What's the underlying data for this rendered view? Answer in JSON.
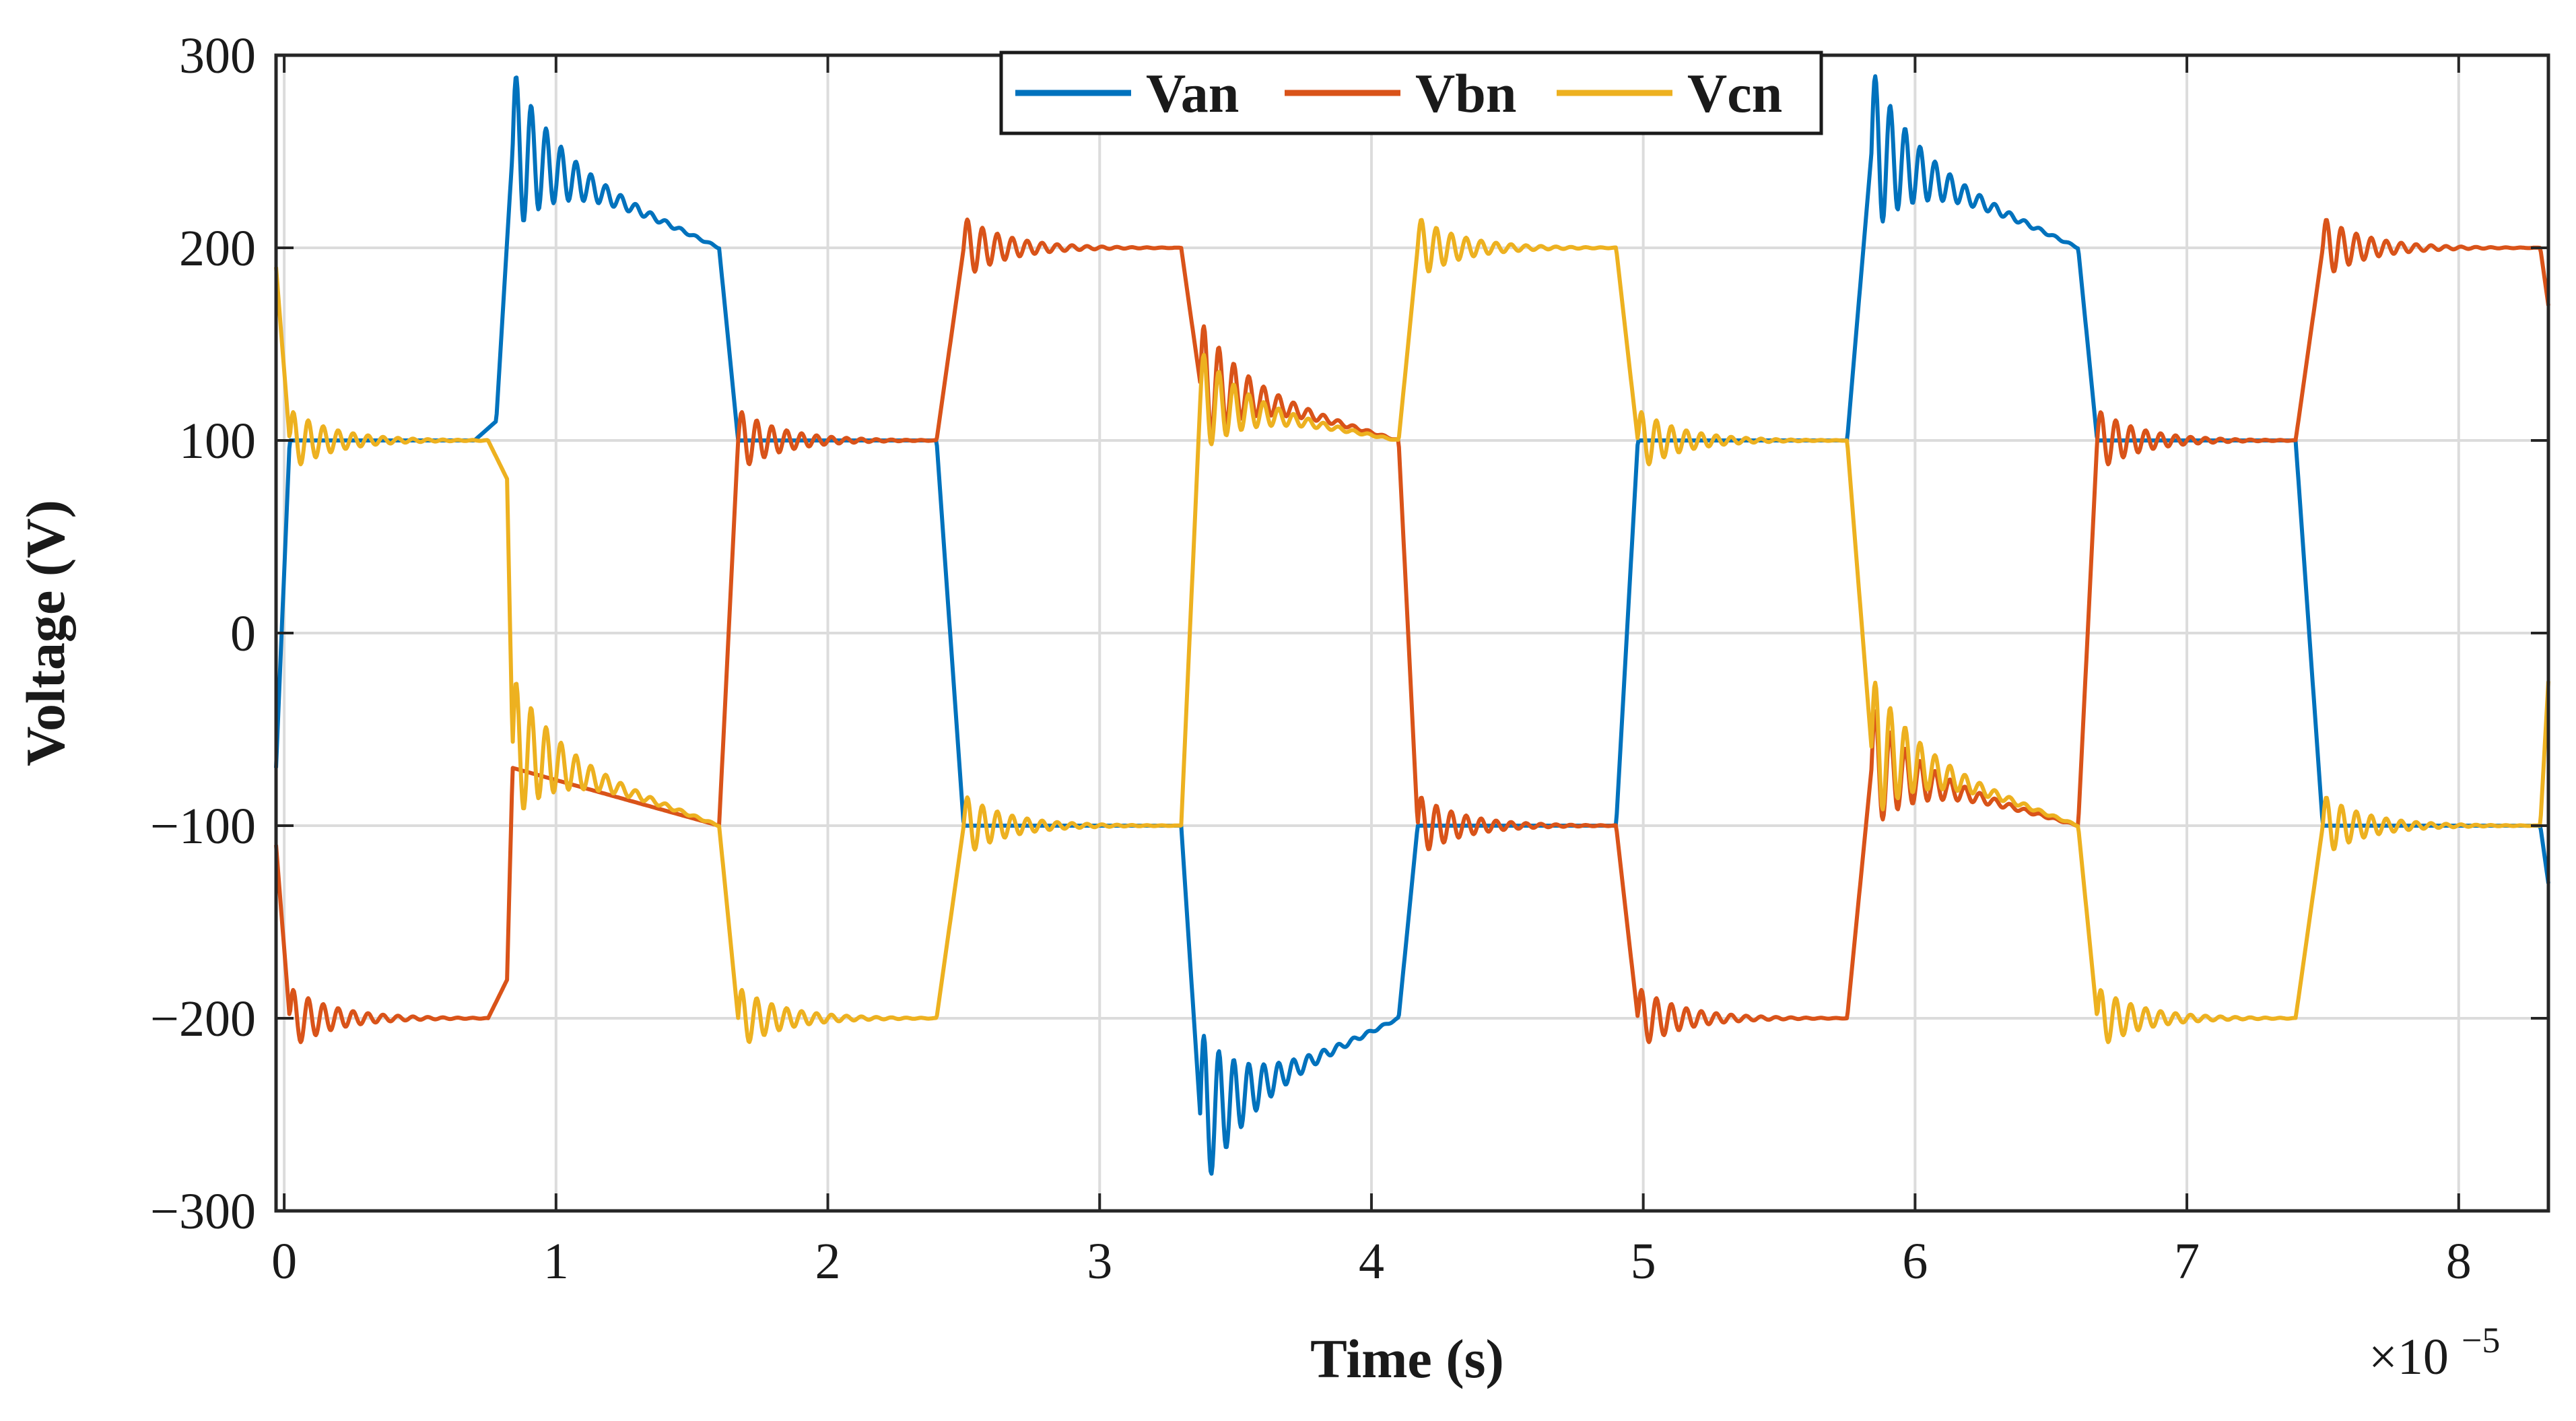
{
  "chart_data": {
    "type": "line",
    "title": "",
    "xlabel": "Time (s)",
    "ylabel": "Voltage (V)",
    "x_exponent_base": "×10",
    "x_exponent_power": "−5",
    "xlim": [
      -0.03,
      8.33
    ],
    "ylim": [
      -300,
      300
    ],
    "xticks": [
      0,
      1,
      2,
      3,
      4,
      5,
      6,
      7,
      8
    ],
    "xtick_labels": [
      "0",
      "1",
      "2",
      "3",
      "4",
      "5",
      "6",
      "7",
      "8"
    ],
    "yticks": [
      300,
      200,
      100,
      0,
      -100,
      -200,
      -300
    ],
    "ytick_labels": [
      "300",
      "200",
      "100",
      "0",
      "−100",
      "−200",
      "−300"
    ],
    "grid": true,
    "legend_position": "top-center",
    "series": [
      {
        "name": "Van",
        "color": "#0072BD",
        "points": [
          [
            -0.03,
            -70
          ],
          [
            0.02,
            100
          ],
          [
            0.7,
            100
          ],
          [
            0.78,
            110
          ],
          [
            0.84,
            250
          ],
          [
            1.6,
            200
          ],
          [
            1.67,
            100
          ],
          [
            2.4,
            100
          ],
          [
            2.5,
            -100
          ],
          [
            3.3,
            -100
          ],
          [
            3.37,
            -250
          ],
          [
            4.1,
            -200
          ],
          [
            4.17,
            -100
          ],
          [
            4.9,
            -100
          ],
          [
            4.98,
            100
          ],
          [
            5.75,
            100
          ],
          [
            5.84,
            250
          ],
          [
            6.6,
            200
          ],
          [
            6.67,
            100
          ],
          [
            7.4,
            100
          ],
          [
            7.5,
            -100
          ],
          [
            8.3,
            -100
          ],
          [
            8.33,
            -130
          ]
        ],
        "ringing": [
          [
            0.84,
            250,
            1.6
          ],
          [
            3.37,
            -250,
            4.1
          ],
          [
            5.84,
            250,
            6.6
          ]
        ]
      },
      {
        "name": "Vbn",
        "color": "#D95319",
        "points": [
          [
            -0.03,
            -110
          ],
          [
            0.02,
            -200
          ],
          [
            0.75,
            -200
          ],
          [
            0.82,
            -180
          ],
          [
            0.84,
            -70
          ],
          [
            1.6,
            -100
          ],
          [
            1.67,
            100
          ],
          [
            2.4,
            100
          ],
          [
            2.5,
            200
          ],
          [
            3.3,
            200
          ],
          [
            3.37,
            130
          ],
          [
            4.1,
            100
          ],
          [
            4.17,
            -100
          ],
          [
            4.9,
            -100
          ],
          [
            4.98,
            -200
          ],
          [
            5.75,
            -200
          ],
          [
            5.84,
            -70
          ],
          [
            6.6,
            -100
          ],
          [
            6.67,
            100
          ],
          [
            7.4,
            100
          ],
          [
            7.5,
            200
          ],
          [
            8.3,
            200
          ],
          [
            8.33,
            170
          ]
        ],
        "ringing": [
          [
            0.02,
            -200,
            0.75
          ],
          [
            1.67,
            100,
            2.4
          ],
          [
            2.5,
            200,
            3.3
          ],
          [
            3.37,
            130,
            4.1
          ],
          [
            4.17,
            -100,
            4.9
          ],
          [
            4.98,
            -200,
            5.75
          ],
          [
            5.84,
            -70,
            6.6
          ],
          [
            6.67,
            100,
            7.4
          ],
          [
            7.5,
            200,
            8.3
          ]
        ]
      },
      {
        "name": "Vcn",
        "color": "#EDB120",
        "points": [
          [
            -0.03,
            190
          ],
          [
            0.02,
            100
          ],
          [
            0.75,
            100
          ],
          [
            0.82,
            80
          ],
          [
            0.84,
            -60
          ],
          [
            1.6,
            -100
          ],
          [
            1.67,
            -200
          ],
          [
            2.4,
            -200
          ],
          [
            2.5,
            -100
          ],
          [
            3.3,
            -100
          ],
          [
            3.37,
            120
          ],
          [
            4.1,
            100
          ],
          [
            4.17,
            200
          ],
          [
            4.9,
            200
          ],
          [
            4.98,
            100
          ],
          [
            5.75,
            100
          ],
          [
            5.84,
            -60
          ],
          [
            6.6,
            -100
          ],
          [
            6.67,
            -200
          ],
          [
            7.4,
            -200
          ],
          [
            7.5,
            -100
          ],
          [
            8.3,
            -100
          ],
          [
            8.33,
            -25
          ]
        ],
        "ringing": [
          [
            0.02,
            100,
            0.75
          ],
          [
            0.84,
            -60,
            1.6
          ],
          [
            1.67,
            -200,
            2.4
          ],
          [
            2.5,
            -100,
            3.3
          ],
          [
            3.37,
            120,
            4.1
          ],
          [
            4.17,
            200,
            4.9
          ],
          [
            4.98,
            100,
            5.75
          ],
          [
            5.84,
            -60,
            6.6
          ],
          [
            6.67,
            -200,
            7.4
          ],
          [
            7.5,
            -100,
            8.3
          ]
        ]
      }
    ]
  }
}
